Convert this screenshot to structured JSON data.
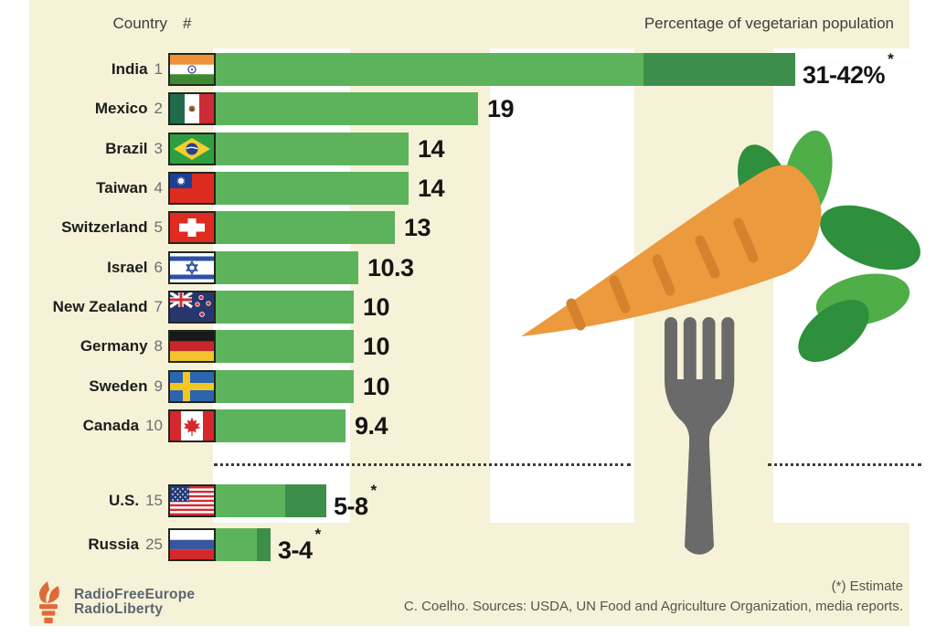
{
  "meta": {
    "bg_cream": "#f6f2d8",
    "bar_green": "#5cb35c",
    "bar_dark_green": "#3d8e4b",
    "fork_gray": "#6a6a6a",
    "carrot_orange": "#ec9a3e",
    "carrot_stripe": "#d4822e",
    "leaf_light": "#4fae47",
    "leaf_dark": "#2e8f3c",
    "logo_orange": "#e0693a",
    "logo_slate": "#5b6670",
    "estimate_marker": "*"
  },
  "header": {
    "country_label": "Country",
    "rank_label": "#",
    "value_axis_label": "Percentage of vegetarian population"
  },
  "rows": [
    {
      "country": "India",
      "rank": "1",
      "flag": "india",
      "low": 31,
      "high": 42,
      "label": "31-42%",
      "estimate": true
    },
    {
      "country": "Mexico",
      "rank": "2",
      "flag": "mexico",
      "low": 19,
      "label": "19"
    },
    {
      "country": "Brazil",
      "rank": "3",
      "flag": "brazil",
      "low": 14,
      "label": "14"
    },
    {
      "country": "Taiwan",
      "rank": "4",
      "flag": "taiwan",
      "low": 14,
      "label": "14"
    },
    {
      "country": "Switzerland",
      "rank": "5",
      "flag": "switzerland",
      "low": 13,
      "label": "13"
    },
    {
      "country": "Israel",
      "rank": "6",
      "flag": "israel",
      "low": 10.3,
      "label": "10.3"
    },
    {
      "country": "New Zealand",
      "rank": "7",
      "flag": "new-zealand",
      "low": 10,
      "label": "10"
    },
    {
      "country": "Germany",
      "rank": "8",
      "flag": "germany",
      "low": 10,
      "label": "10"
    },
    {
      "country": "Sweden",
      "rank": "9",
      "flag": "sweden",
      "low": 10,
      "label": "10"
    },
    {
      "country": "Canada",
      "rank": "10",
      "flag": "canada",
      "low": 9.4,
      "label": "9.4"
    }
  ],
  "rows_secondary": [
    {
      "country": "U.S.",
      "rank": "15",
      "flag": "us",
      "low": 5,
      "high": 8,
      "label": "5-8",
      "estimate": true
    },
    {
      "country": "Russia",
      "rank": "25",
      "flag": "russia",
      "low": 3,
      "high": 4,
      "label": "3-4",
      "estimate": true
    }
  ],
  "footer": {
    "estimate_note": "(*) Estimate",
    "source": "C. Coelho. Sources: USDA, UN Food and Agriculture Organization, media reports.",
    "logo_line1": "RadioFreeEurope",
    "logo_line2": "RadioLiberty"
  },
  "chart_data": {
    "type": "bar",
    "orientation": "horizontal",
    "title": "Percentage of vegetarian population",
    "categories": [
      "India",
      "Mexico",
      "Brazil",
      "Taiwan",
      "Switzerland",
      "Israel",
      "New Zealand",
      "Germany",
      "Sweden",
      "Canada",
      "U.S.",
      "Russia"
    ],
    "ranks": [
      1,
      2,
      3,
      4,
      5,
      6,
      7,
      8,
      9,
      10,
      15,
      25
    ],
    "series": [
      {
        "name": "minimum",
        "values": [
          31,
          19,
          14,
          14,
          13,
          10.3,
          10,
          10,
          10,
          9.4,
          5,
          3
        ]
      },
      {
        "name": "maximum",
        "values": [
          42,
          19,
          14,
          14,
          13,
          10.3,
          10,
          10,
          10,
          9.4,
          8,
          4
        ]
      }
    ],
    "value_labels": [
      "31-42%*",
      "19",
      "14",
      "14",
      "13",
      "10.3",
      "10",
      "10",
      "10",
      "9.4",
      "5-8*",
      "3-4*"
    ],
    "estimated": [
      "India",
      "U.S.",
      "Russia"
    ],
    "xlim": [
      0,
      45
    ],
    "grid": false,
    "legend": false,
    "separator_between": [
      "Canada",
      "U.S."
    ]
  }
}
